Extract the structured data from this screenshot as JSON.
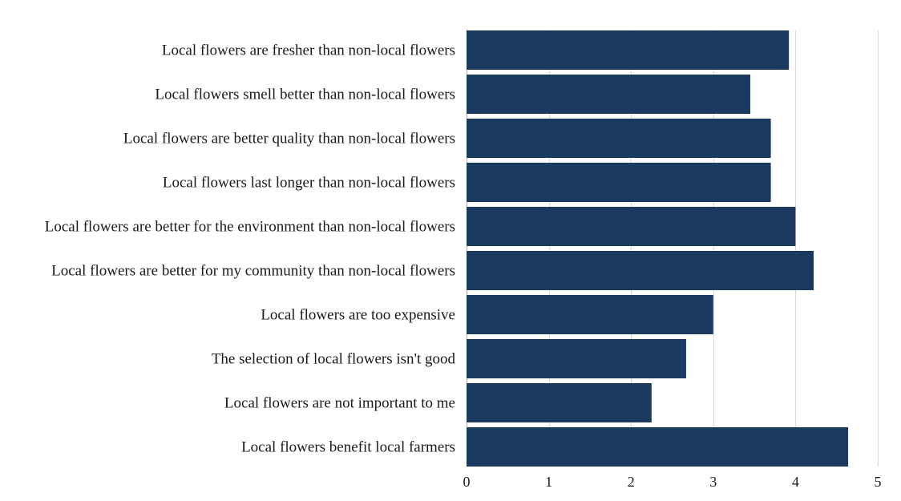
{
  "chart_data": {
    "type": "bar",
    "orientation": "horizontal",
    "categories": [
      "Local flowers are fresher than non-local flowers",
      "Local flowers smell better than non-local flowers",
      "Local flowers are better quality than non-local flowers",
      "Local flowers last longer than non-local flowers",
      "Local flowers are better for the environment than non-local flowers",
      "Local flowers are better for my community than non-local flowers",
      "Local flowers are too expensive",
      "The selection of local flowers isn't good",
      "Local flowers are not important to me",
      "Local flowers benefit local farmers"
    ],
    "values": [
      3.92,
      3.45,
      3.7,
      3.7,
      4.0,
      4.22,
      3.0,
      2.67,
      2.25,
      4.64
    ],
    "xlim": [
      0,
      5
    ],
    "xticks": [
      "0",
      "1",
      "2",
      "3",
      "4",
      "5"
    ],
    "title": "",
    "xlabel": "",
    "ylabel": "",
    "grid": "vertical",
    "bar_color": "#1b3a5f"
  }
}
